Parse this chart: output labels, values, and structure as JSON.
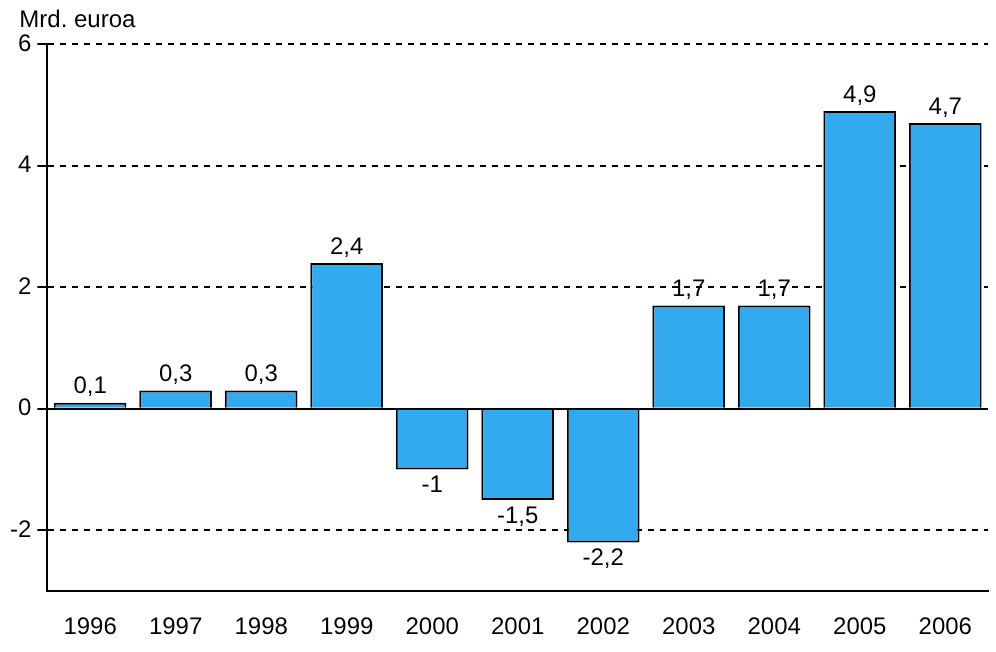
{
  "chart_data": {
    "type": "bar",
    "ylabel": "Mrd. euroa",
    "categories": [
      "1996",
      "1997",
      "1998",
      "1999",
      "2000",
      "2001",
      "2002",
      "2003",
      "2004",
      "2005",
      "2006"
    ],
    "values": [
      0.1,
      0.3,
      0.3,
      2.4,
      -1,
      -1.5,
      -2.2,
      1.7,
      1.7,
      4.9,
      4.7
    ],
    "value_labels": [
      "0,1",
      "0,3",
      "0,3",
      "2,4",
      "-1",
      "-1,5",
      "-2,2",
      "1,7",
      "1,7",
      "4,9",
      "4,7"
    ],
    "color": "#33aaee",
    "ylim": [
      -3,
      6
    ],
    "yticks": [
      -2,
      0,
      2,
      4,
      6
    ],
    "grid": "y",
    "legend": false
  }
}
